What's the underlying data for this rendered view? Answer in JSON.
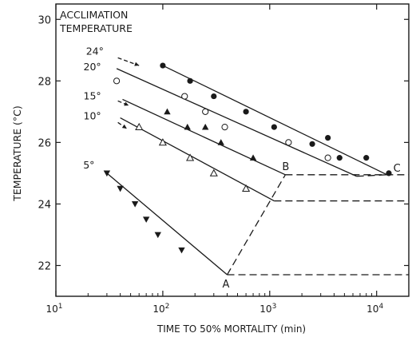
{
  "chart_data": {
    "type": "scatter",
    "xlabel": "TIME TO 50% MORTALITY (min)",
    "ylabel": "TEMPERATURE (°C)",
    "legend_title_lines": [
      "ACCLIMATION",
      "TEMPERATURE"
    ],
    "x_scale": "log",
    "xlim": [
      10,
      20000
    ],
    "ylim": [
      21,
      30.5
    ],
    "x_ticks": [
      {
        "value": 10,
        "base": "10",
        "exp": "1"
      },
      {
        "value": 100,
        "base": "10",
        "exp": "2"
      },
      {
        "value": 1000,
        "base": "10",
        "exp": "3"
      },
      {
        "value": 10000,
        "base": "10",
        "exp": "4"
      }
    ],
    "y_ticks": [
      {
        "value": 22,
        "label": "22"
      },
      {
        "value": 24,
        "label": "24"
      },
      {
        "value": 26,
        "label": "26"
      },
      {
        "value": 28,
        "label": "28"
      },
      {
        "value": 30,
        "label": "30"
      }
    ],
    "grid": false,
    "series": [
      {
        "name": "24°",
        "marker": "filled-circle",
        "points": [
          [
            100,
            28.5
          ],
          [
            180,
            28.0
          ],
          [
            300,
            27.5
          ],
          [
            600,
            27.0
          ],
          [
            1100,
            26.5
          ],
          [
            2500,
            25.95
          ],
          [
            3500,
            26.15
          ],
          [
            4500,
            25.5
          ],
          [
            8000,
            25.5
          ],
          [
            13000,
            25.0
          ]
        ],
        "line": [
          [
            100,
            28.5
          ],
          [
            12500,
            24.95
          ]
        ],
        "label_arrow": [
          [
            38,
            28.75
          ],
          [
            60,
            28.5
          ]
        ]
      },
      {
        "name": "20°",
        "marker": "open-circle",
        "points": [
          [
            37,
            28.0
          ],
          [
            160,
            27.5
          ],
          [
            250,
            27.0
          ],
          [
            380,
            26.5
          ],
          [
            1500,
            26.0
          ],
          [
            3500,
            25.5
          ]
        ],
        "line": [
          [
            37,
            28.4
          ],
          [
            6500,
            24.9
          ]
        ],
        "label_arrow": null
      },
      {
        "name": "15°",
        "marker": "filled-triangle",
        "points": [
          [
            110,
            27.0
          ],
          [
            170,
            26.5
          ],
          [
            250,
            26.5
          ],
          [
            350,
            26.0
          ],
          [
            700,
            25.5
          ]
        ],
        "line": [
          [
            42,
            27.4
          ],
          [
            1400,
            24.95
          ]
        ],
        "label_arrow": [
          [
            38,
            27.35
          ],
          [
            48,
            27.2
          ]
        ]
      },
      {
        "name": "10°",
        "marker": "open-triangle",
        "points": [
          [
            60,
            26.5
          ],
          [
            100,
            26.0
          ],
          [
            180,
            25.5
          ],
          [
            300,
            25.0
          ],
          [
            600,
            24.5
          ]
        ],
        "line": [
          [
            40,
            26.8
          ],
          [
            1100,
            24.1
          ]
        ],
        "label_arrow": [
          [
            38,
            26.65
          ],
          [
            46,
            26.45
          ]
        ]
      },
      {
        "name": "5°",
        "marker": "filled-down-triangle",
        "points": [
          [
            30,
            25.0
          ],
          [
            40,
            24.5
          ],
          [
            55,
            24.0
          ],
          [
            70,
            23.5
          ],
          [
            90,
            23.0
          ],
          [
            150,
            22.5
          ]
        ],
        "line": [
          [
            30,
            25.0
          ],
          [
            400,
            21.7
          ]
        ],
        "label_arrow": null
      }
    ],
    "dashed_lines": [
      [
        [
          400,
          21.7
        ],
        [
          1400,
          24.95
        ]
      ],
      [
        [
          400,
          21.7
        ],
        [
          20000,
          21.7
        ]
      ],
      [
        [
          1100,
          24.1
        ],
        [
          20000,
          24.1
        ]
      ],
      [
        [
          1400,
          24.95
        ],
        [
          20000,
          24.95
        ]
      ],
      [
        [
          6500,
          24.9
        ],
        [
          12500,
          24.95
        ]
      ]
    ],
    "annotations": [
      {
        "label": "A",
        "x": 400,
        "y": 21.7
      },
      {
        "label": "B",
        "x": 1400,
        "y": 24.95
      },
      {
        "label": "C",
        "x": 12500,
        "y": 24.95
      }
    ]
  }
}
